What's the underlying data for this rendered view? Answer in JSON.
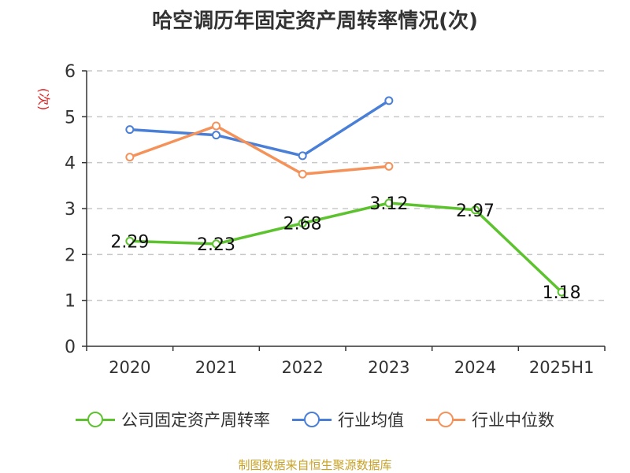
{
  "chart_data": {
    "type": "line",
    "title": "哈空调历年固定资产周转率情况(次)",
    "ylabel": "(次)",
    "categories": [
      "2020",
      "2021",
      "2022",
      "2023",
      "2024",
      "2025H1"
    ],
    "ylim": [
      0,
      6
    ],
    "yticks": [
      0,
      1,
      2,
      3,
      4,
      5,
      6
    ],
    "grid": true,
    "legend_position": "bottom",
    "series": [
      {
        "name": "公司固定资产周转率",
        "color": "#5cc22e",
        "values": [
          2.29,
          2.23,
          2.68,
          3.12,
          2.97,
          1.18
        ],
        "labels": [
          "2.29",
          "2.23",
          "2.68",
          "3.12",
          "2.97",
          "1.18"
        ]
      },
      {
        "name": "行业均值",
        "color": "#4a7fd8",
        "values": [
          4.72,
          4.6,
          4.15,
          5.35,
          null,
          null
        ]
      },
      {
        "name": "行业中位数",
        "color": "#f5925a",
        "values": [
          4.12,
          4.8,
          3.75,
          3.92,
          null,
          null
        ]
      }
    ]
  },
  "source": "制图数据来自恒生聚源数据库"
}
